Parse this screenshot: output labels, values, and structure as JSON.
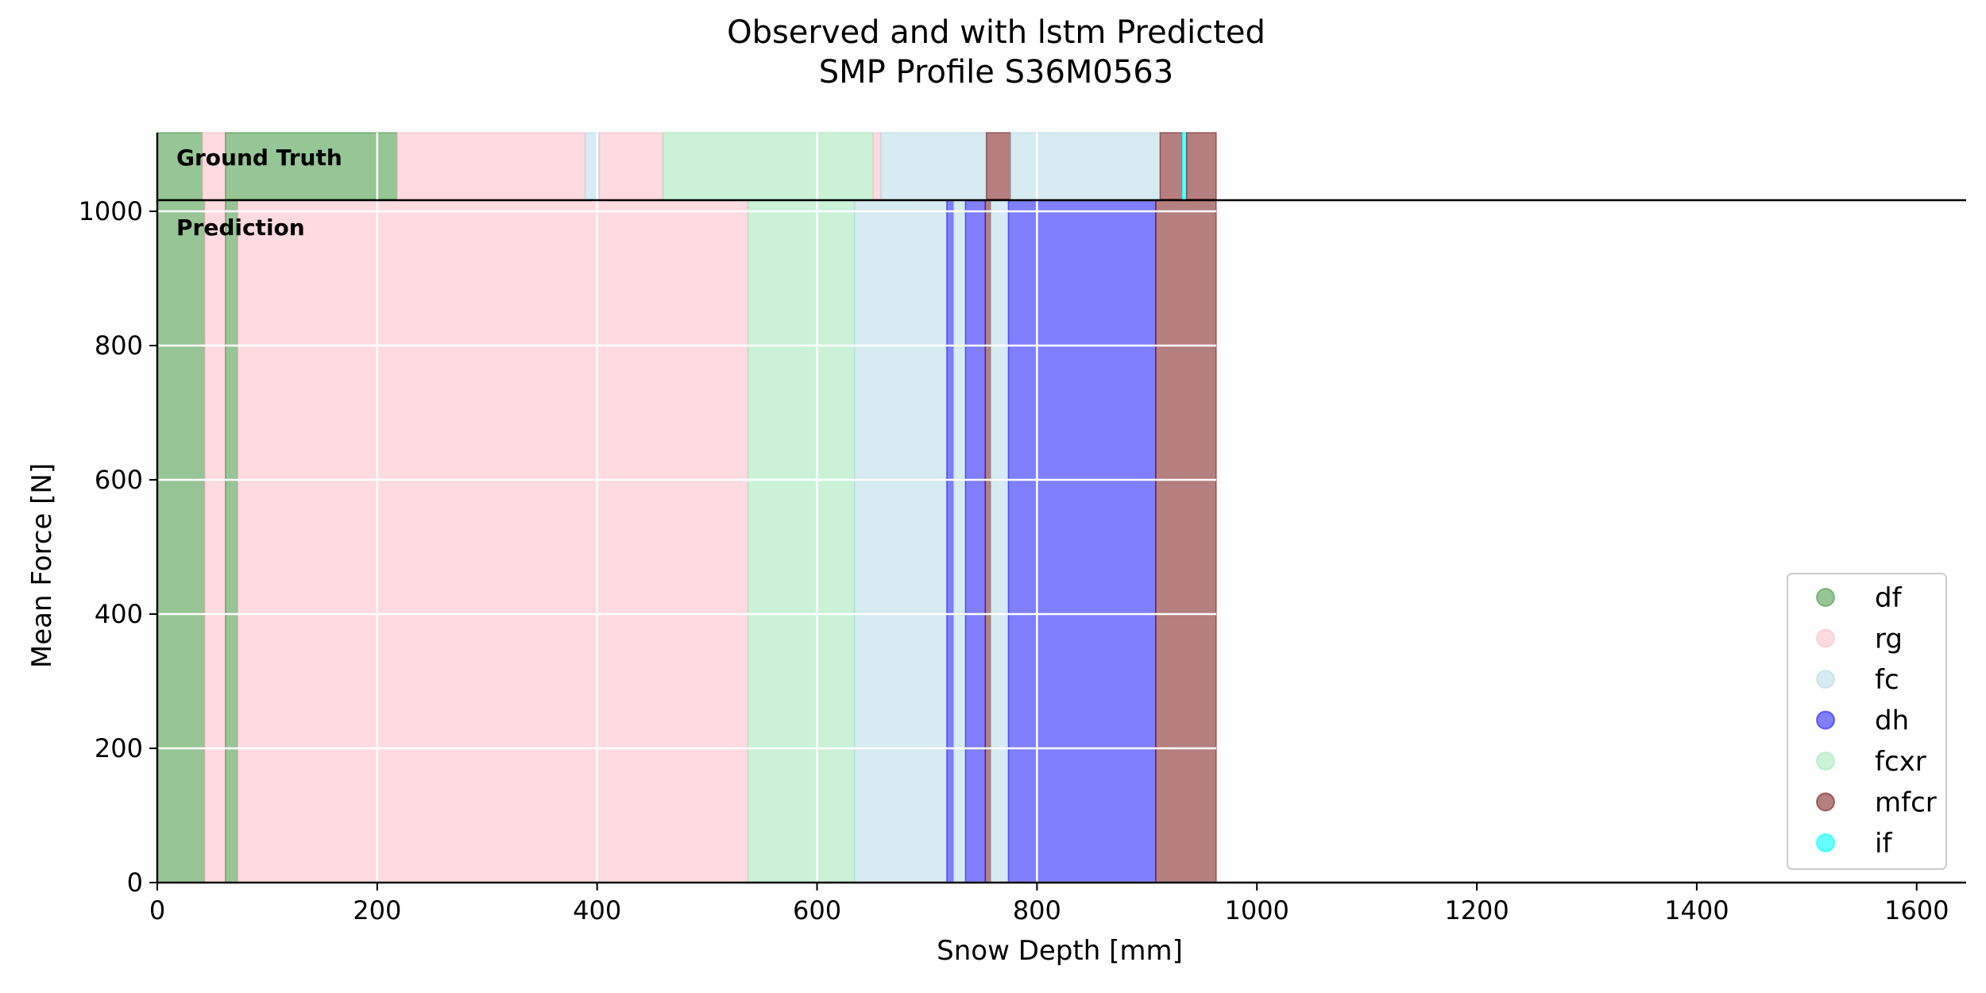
{
  "chart_data": {
    "type": "area",
    "title_line1": "Observed and with lstm Predicted",
    "title_line2": "SMP Profile S36M0563",
    "xlabel": "Snow Depth [mm]",
    "ylabel": "Mean Force [N]",
    "xlim": [
      0,
      1645
    ],
    "ylim": [
      0,
      1000
    ],
    "x_ticks": [
      0,
      200,
      400,
      600,
      800,
      1000,
      1200,
      1400,
      1600
    ],
    "y_ticks": [
      0,
      200,
      400,
      600,
      800,
      1000
    ],
    "grid": true,
    "legend_position": "lower-right",
    "panel_labels": {
      "ground_truth": "Ground Truth",
      "prediction": "Prediction"
    },
    "classes": [
      {
        "name": "df",
        "color": "#2e8b2e",
        "alpha": 0.5
      },
      {
        "name": "rg",
        "color": "#ffb6c1",
        "alpha": 0.5
      },
      {
        "name": "fc",
        "color": "#add8e6",
        "alpha": 0.5
      },
      {
        "name": "dh",
        "color": "#0000ff",
        "alpha": 0.5
      },
      {
        "name": "fcxr",
        "color": "#98e6b0",
        "alpha": 0.5
      },
      {
        "name": "mfcr",
        "color": "#6b0000",
        "alpha": 0.5
      },
      {
        "name": "if",
        "color": "#00ffff",
        "alpha": 0.6
      }
    ],
    "ground_truth": [
      {
        "from": 0,
        "to": 41,
        "class": "df"
      },
      {
        "from": 41,
        "to": 62,
        "class": "rg"
      },
      {
        "from": 62,
        "to": 218,
        "class": "df"
      },
      {
        "from": 218,
        "to": 389,
        "class": "rg"
      },
      {
        "from": 389,
        "to": 402,
        "class": "fc"
      },
      {
        "from": 402,
        "to": 460,
        "class": "rg"
      },
      {
        "from": 460,
        "to": 651,
        "class": "fcxr"
      },
      {
        "from": 651,
        "to": 658,
        "class": "rg"
      },
      {
        "from": 658,
        "to": 754,
        "class": "fc"
      },
      {
        "from": 754,
        "to": 776,
        "class": "mfcr"
      },
      {
        "from": 776,
        "to": 912,
        "class": "fc"
      },
      {
        "from": 912,
        "to": 932,
        "class": "mfcr"
      },
      {
        "from": 932,
        "to": 936,
        "class": "if"
      },
      {
        "from": 936,
        "to": 963,
        "class": "mfcr"
      }
    ],
    "prediction": [
      {
        "from": 0,
        "to": 43,
        "class": "df"
      },
      {
        "from": 43,
        "to": 62,
        "class": "rg"
      },
      {
        "from": 62,
        "to": 73,
        "class": "df"
      },
      {
        "from": 73,
        "to": 537,
        "class": "rg"
      },
      {
        "from": 537,
        "to": 634,
        "class": "fcxr"
      },
      {
        "from": 634,
        "to": 718,
        "class": "fc"
      },
      {
        "from": 718,
        "to": 724,
        "class": "dh"
      },
      {
        "from": 724,
        "to": 735,
        "class": "fc"
      },
      {
        "from": 735,
        "to": 753,
        "class": "dh"
      },
      {
        "from": 753,
        "to": 758,
        "class": "mfcr"
      },
      {
        "from": 758,
        "to": 774,
        "class": "fc"
      },
      {
        "from": 774,
        "to": 908,
        "class": "dh"
      },
      {
        "from": 908,
        "to": 963,
        "class": "mfcr"
      }
    ]
  }
}
